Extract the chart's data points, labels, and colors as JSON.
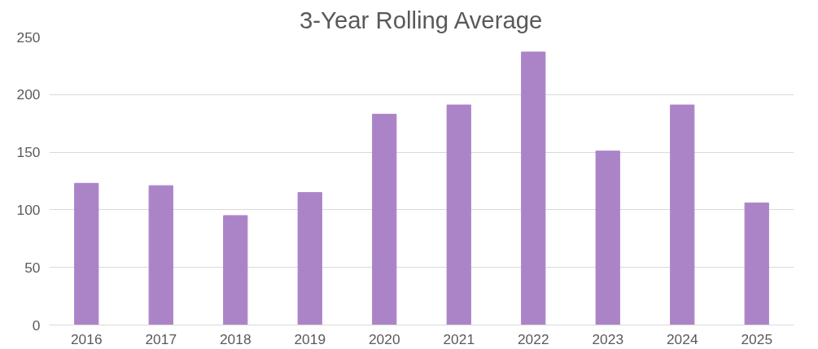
{
  "chart_data": {
    "type": "bar",
    "title": "3-Year Rolling Average",
    "categories": [
      "2016",
      "2017",
      "2018",
      "2019",
      "2020",
      "2021",
      "2022",
      "2023",
      "2024",
      "2025"
    ],
    "values": [
      123,
      121,
      95,
      115,
      183,
      191,
      237,
      151,
      191,
      106
    ],
    "color": "#ab84c8",
    "ylim": [
      0,
      250
    ],
    "yticks": [
      0,
      50,
      100,
      150,
      200,
      250
    ],
    "grid": "y"
  }
}
